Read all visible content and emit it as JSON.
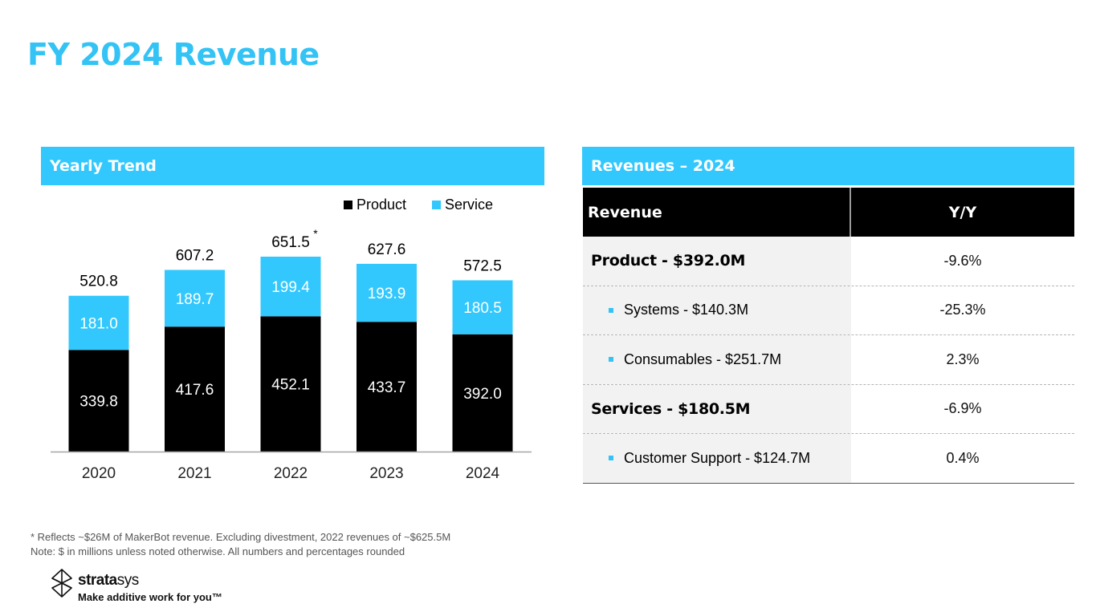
{
  "page": {
    "title": "FY 2024 Revenue"
  },
  "trend_section": {
    "header": "Yearly Trend"
  },
  "revenue_section": {
    "header": "Revenues – 2024",
    "columns": [
      "Revenue",
      "Y/Y"
    ],
    "rows": [
      {
        "label": "Product - $392.0M",
        "yy": "-9.6%",
        "level": "main"
      },
      {
        "label": "Systems - $140.3M",
        "yy": "-25.3%",
        "level": "sub"
      },
      {
        "label": "Consumables - $251.7M",
        "yy": "2.3%",
        "level": "sub"
      },
      {
        "label": "Services - $180.5M",
        "yy": "-6.9%",
        "level": "main"
      },
      {
        "label": "Customer Support - $124.7M",
        "yy": "0.4%",
        "level": "sub"
      }
    ]
  },
  "footnotes": [
    "* Reflects ~$26M of MakerBot revenue. Excluding divestment, 2022 revenues of ~$625.5M",
    "Note: $ in millions unless noted otherwise. All numbers and percentages rounded"
  ],
  "brand": {
    "name_bold": "strata",
    "name_light": "sys",
    "tagline": "Make additive work for you™"
  },
  "colors": {
    "accent": "#33c8fd",
    "product": "#000000",
    "service": "#33c8fd"
  },
  "chart_data": {
    "type": "bar",
    "stacked": true,
    "title": "Yearly Trend",
    "xlabel": "",
    "ylabel": "",
    "categories": [
      "2020",
      "2021",
      "2022",
      "2023",
      "2024"
    ],
    "series": [
      {
        "name": "Product",
        "color": "#000000",
        "values": [
          339.8,
          417.6,
          452.1,
          433.7,
          392.0
        ]
      },
      {
        "name": "Service",
        "color": "#33c8fd",
        "values": [
          181.0,
          189.7,
          199.4,
          193.9,
          180.5
        ]
      }
    ],
    "totals": [
      "520.8",
      "607.2",
      "651.5",
      "627.6",
      "572.5"
    ],
    "total_annotations": [
      "",
      "",
      "*",
      "",
      ""
    ],
    "legend": "top-right",
    "grid": false,
    "ylim": [
      0,
      651.5
    ]
  }
}
